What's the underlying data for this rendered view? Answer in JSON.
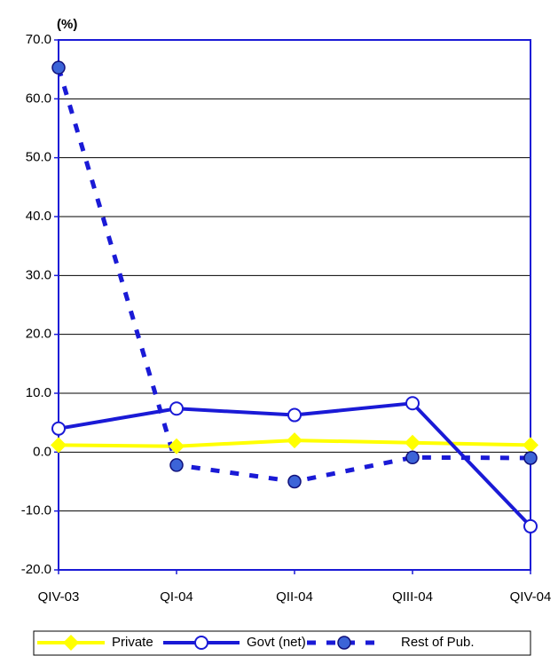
{
  "chart_data": {
    "type": "line",
    "y_label": "(%)",
    "categories": [
      "QIV-03",
      "QI-04",
      "QII-04",
      "QIII-04",
      "QIV-04"
    ],
    "series": [
      {
        "name": "Private",
        "color": "#ffff00",
        "marker": "diamond",
        "dashed": false,
        "values": [
          1.2,
          1.0,
          2.0,
          1.6,
          1.2
        ]
      },
      {
        "name": "Govt (net)",
        "color": "#1a1ad6",
        "marker": "open-circle",
        "dashed": false,
        "values": [
          4.0,
          7.4,
          6.3,
          8.3,
          -12.6
        ]
      },
      {
        "name": "Rest of Pub.",
        "color": "#1a1ad6",
        "marker": "filled-circle",
        "dashed": true,
        "values": [
          65.3,
          -2.2,
          -5.0,
          -0.9,
          -1.0
        ]
      }
    ],
    "ylim": [
      -20,
      70
    ],
    "yticks": [
      {
        "value": -20,
        "label": "-20.0"
      },
      {
        "value": -10,
        "label": "-10.0"
      },
      {
        "value": 0,
        "label": "0.0"
      },
      {
        "value": 10,
        "label": "10.0"
      },
      {
        "value": 20,
        "label": "20.0"
      },
      {
        "value": 30,
        "label": "30.0"
      },
      {
        "value": 40,
        "label": "40.0"
      },
      {
        "value": 50,
        "label": "50.0"
      },
      {
        "value": 60,
        "label": "60.0"
      },
      {
        "value": 70,
        "label": "70.0"
      }
    ],
    "grid": true
  }
}
